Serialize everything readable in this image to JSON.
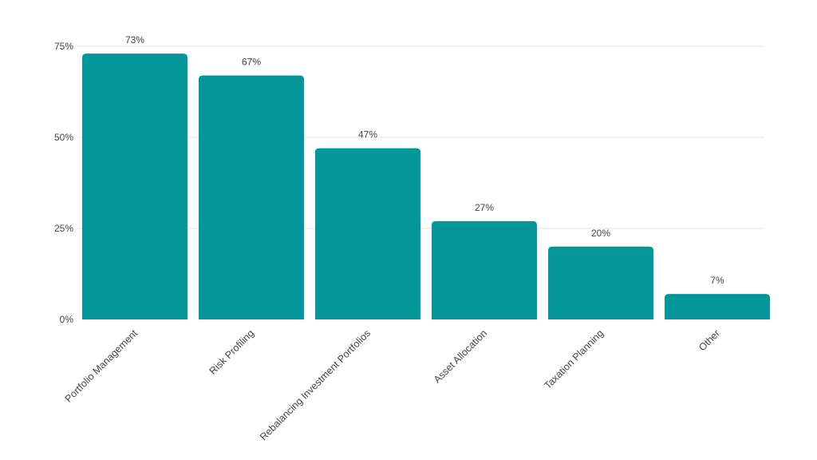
{
  "chart_data": {
    "type": "bar",
    "title": "",
    "xlabel": "",
    "ylabel": "",
    "categories": [
      "Portfolio Management",
      "Risk Profiling",
      "Rebalancing Investment Portfolios",
      "Asset Allocation",
      "Taxation Planning",
      "Other"
    ],
    "values": [
      73,
      67,
      47,
      27,
      20,
      7
    ],
    "data_labels": [
      "73%",
      "67%",
      "47%",
      "27%",
      "20%",
      "7%"
    ],
    "ylim": [
      0,
      75
    ],
    "yticks": [
      0,
      25,
      50,
      75
    ],
    "ytick_labels": [
      "0%",
      "25%",
      "50%",
      "75%"
    ],
    "grid": true,
    "legend": "none",
    "colors": {
      "bar": "#03979b",
      "grid": "#e6e6e6",
      "text": "#444444"
    }
  }
}
